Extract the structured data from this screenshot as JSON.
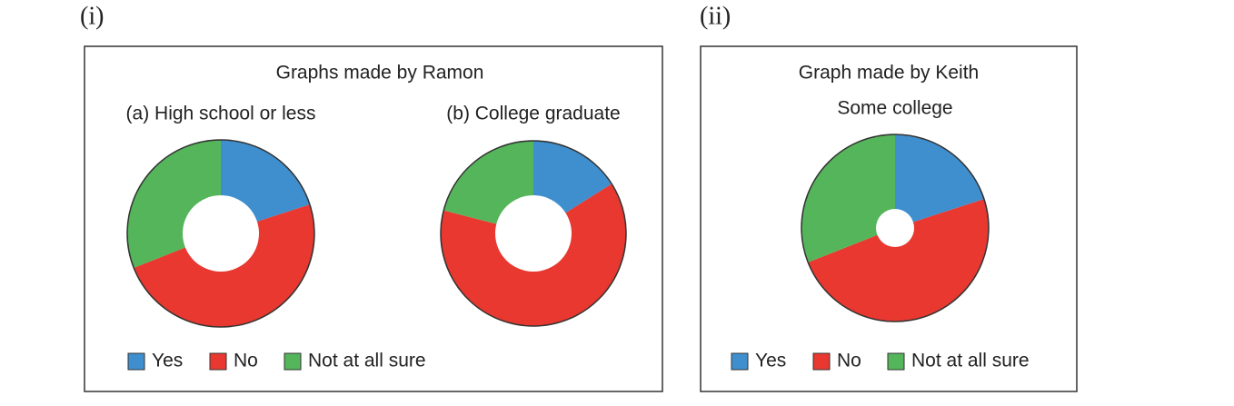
{
  "panels": [
    {
      "label": "(i)",
      "title": "Graphs made by Ramon"
    },
    {
      "label": "(ii)",
      "title": "Graph made by Keith"
    }
  ],
  "chart_data": [
    {
      "type": "pie",
      "title": "(a) High school or less",
      "categories": [
        "Yes",
        "No",
        "Not at all sure"
      ],
      "values": [
        20,
        49,
        31
      ],
      "colors": [
        "#3f8fcf",
        "#e8382f",
        "#55b55a"
      ]
    },
    {
      "type": "pie",
      "title": "(b) College graduate",
      "categories": [
        "Yes",
        "No",
        "Not at all sure"
      ],
      "values": [
        16,
        63,
        21
      ],
      "colors": [
        "#3f8fcf",
        "#e8382f",
        "#55b55a"
      ]
    },
    {
      "type": "pie",
      "title": "Some college",
      "categories": [
        "Yes",
        "No",
        "Not at all sure"
      ],
      "values": [
        20,
        49,
        31
      ],
      "colors": [
        "#3f8fcf",
        "#e8382f",
        "#55b55a"
      ]
    }
  ]
}
